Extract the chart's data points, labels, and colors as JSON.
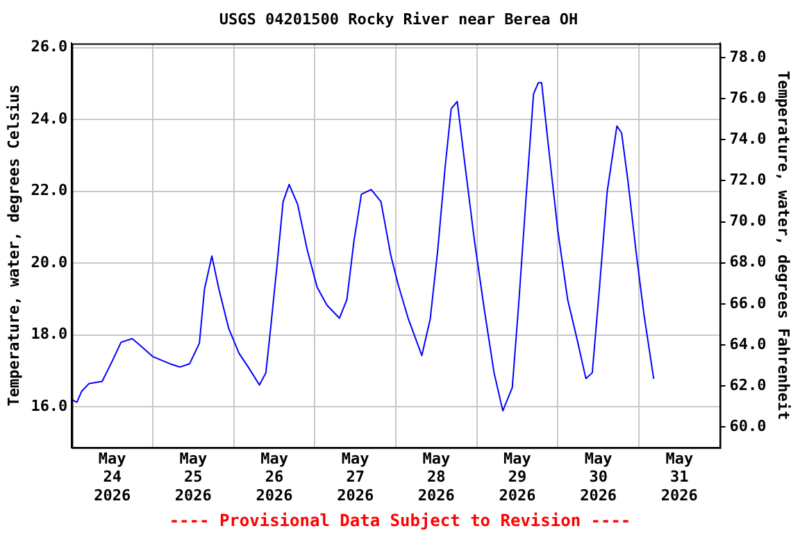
{
  "chart_data": {
    "type": "line",
    "title": "USGS 04201500 Rocky River near Berea OH",
    "ylabel": "Temperature, water, degrees Celsius",
    "y2label": "Temperature, water, degrees Fahrenheit",
    "annotations": [
      "---- Provisional Data Subject to Revision ----"
    ],
    "x": [
      "2026-05-24T00:00",
      "2026-05-24T01:30",
      "2026-05-24T02:54",
      "2026-05-24T05:06",
      "2026-05-24T09:00",
      "2026-05-24T11:36",
      "2026-05-24T14:36",
      "2026-05-24T17:54",
      "2026-05-24T20:24",
      "2026-05-25T00:00",
      "2026-05-25T05:06",
      "2026-05-25T08:00",
      "2026-05-25T10:54",
      "2026-05-25T13:48",
      "2026-05-25T15:18",
      "2026-05-25T17:30",
      "2026-05-25T19:36",
      "2026-05-25T22:30",
      "2026-05-26T01:30",
      "2026-05-26T04:24",
      "2026-05-26T07:36",
      "2026-05-26T09:30",
      "2026-05-26T10:54",
      "2026-05-26T12:48",
      "2026-05-26T14:36",
      "2026-05-26T16:24",
      "2026-05-26T18:54",
      "2026-05-26T21:48",
      "2026-05-27T00:42",
      "2026-05-27T03:36",
      "2026-05-27T07:18",
      "2026-05-27T09:30",
      "2026-05-27T11:36",
      "2026-05-27T13:48",
      "2026-05-27T16:42",
      "2026-05-27T19:36",
      "2026-05-27T22:30",
      "2026-05-28T00:42",
      "2026-05-28T03:42",
      "2026-05-28T07:42",
      "2026-05-28T10:12",
      "2026-05-28T12:24",
      "2026-05-28T14:36",
      "2026-05-28T16:24",
      "2026-05-28T18:12",
      "2026-05-28T20:24",
      "2026-05-28T23:18",
      "2026-05-29T02:12",
      "2026-05-29T05:06",
      "2026-05-29T07:42",
      "2026-05-29T10:30",
      "2026-05-29T12:24",
      "2026-05-29T14:36",
      "2026-05-29T16:48",
      "2026-05-29T18:12",
      "2026-05-29T19:12",
      "2026-05-29T21:06",
      "2026-05-30T00:00",
      "2026-05-30T02:54",
      "2026-05-30T05:48",
      "2026-05-30T08:18",
      "2026-05-30T10:12",
      "2026-05-30T12:24",
      "2026-05-30T14:36",
      "2026-05-30T17:30",
      "2026-05-30T18:54",
      "2026-05-30T20:48",
      "2026-05-30T23:18",
      "2026-05-31T01:30",
      "2026-05-31T04:24"
    ],
    "series": [
      {
        "color": "#0000ff",
        "values": [
          16.2,
          16.13,
          16.43,
          16.65,
          16.71,
          17.2,
          17.8,
          17.9,
          17.7,
          17.4,
          17.2,
          17.11,
          17.2,
          17.77,
          19.27,
          20.2,
          19.27,
          18.18,
          17.5,
          17.09,
          16.61,
          16.95,
          18.18,
          19.94,
          21.71,
          22.19,
          21.64,
          20.35,
          19.33,
          18.83,
          18.47,
          18.99,
          20.62,
          21.92,
          22.05,
          21.71,
          20.22,
          19.4,
          18.45,
          17.43,
          18.45,
          20.35,
          22.67,
          24.3,
          24.5,
          22.8,
          20.62,
          18.72,
          16.95,
          15.89,
          16.54,
          18.86,
          21.85,
          24.71,
          25.02,
          25.02,
          23.35,
          20.9,
          18.99,
          17.84,
          16.79,
          16.95,
          19.4,
          21.98,
          23.82,
          23.62,
          22.26,
          20.22,
          18.58,
          16.78
        ]
      }
    ],
    "xlim": [
      "2026-05-24T00:00",
      "2026-06-01T00:00"
    ],
    "xticks": [
      {
        "value": "2026-05-24T00:00",
        "label": null
      },
      {
        "value": "2026-05-24T12:00",
        "label": "May\n24\n2026"
      },
      {
        "value": "2026-05-25T00:00",
        "label": null
      },
      {
        "value": "2026-05-25T12:00",
        "label": "May\n25\n2026"
      },
      {
        "value": "2026-05-26T00:00",
        "label": null
      },
      {
        "value": "2026-05-26T12:00",
        "label": "May\n26\n2026"
      },
      {
        "value": "2026-05-27T00:00",
        "label": null
      },
      {
        "value": "2026-05-27T12:00",
        "label": "May\n27\n2026"
      },
      {
        "value": "2026-05-28T00:00",
        "label": null
      },
      {
        "value": "2026-05-28T12:00",
        "label": "May\n28\n2026"
      },
      {
        "value": "2026-05-29T00:00",
        "label": null
      },
      {
        "value": "2026-05-29T12:00",
        "label": "May\n29\n2026"
      },
      {
        "value": "2026-05-30T00:00",
        "label": null
      },
      {
        "value": "2026-05-30T12:00",
        "label": "May\n30\n2026"
      },
      {
        "value": "2026-05-31T00:00",
        "label": null
      },
      {
        "value": "2026-05-31T12:00",
        "label": "May\n31\n2026"
      },
      {
        "value": "2026-06-01T00:00",
        "label": null
      }
    ],
    "ylim": [
      14.87,
      26.12
    ],
    "yticks": [
      {
        "value": 16,
        "label": "16.0"
      },
      {
        "value": 18,
        "label": "18.0"
      },
      {
        "value": 20,
        "label": "20.0"
      },
      {
        "value": 22,
        "label": "22.0"
      },
      {
        "value": 24,
        "label": "24.0"
      },
      {
        "value": 26,
        "label": "26.0"
      }
    ],
    "y2lim": [
      59.0,
      78.7
    ],
    "y2ticks": [
      {
        "value": 60,
        "label": "60.0"
      },
      {
        "value": 62,
        "label": "62.0"
      },
      {
        "value": 64,
        "label": "64.0"
      },
      {
        "value": 66,
        "label": "66.0"
      },
      {
        "value": 68,
        "label": "68.0"
      },
      {
        "value": 70,
        "label": "70.0"
      },
      {
        "value": 72,
        "label": "72.0"
      },
      {
        "value": 74,
        "label": "74.0"
      },
      {
        "value": 76,
        "label": "76.0"
      },
      {
        "value": 78,
        "label": "78.0"
      }
    ],
    "grid": true,
    "legend": false
  }
}
